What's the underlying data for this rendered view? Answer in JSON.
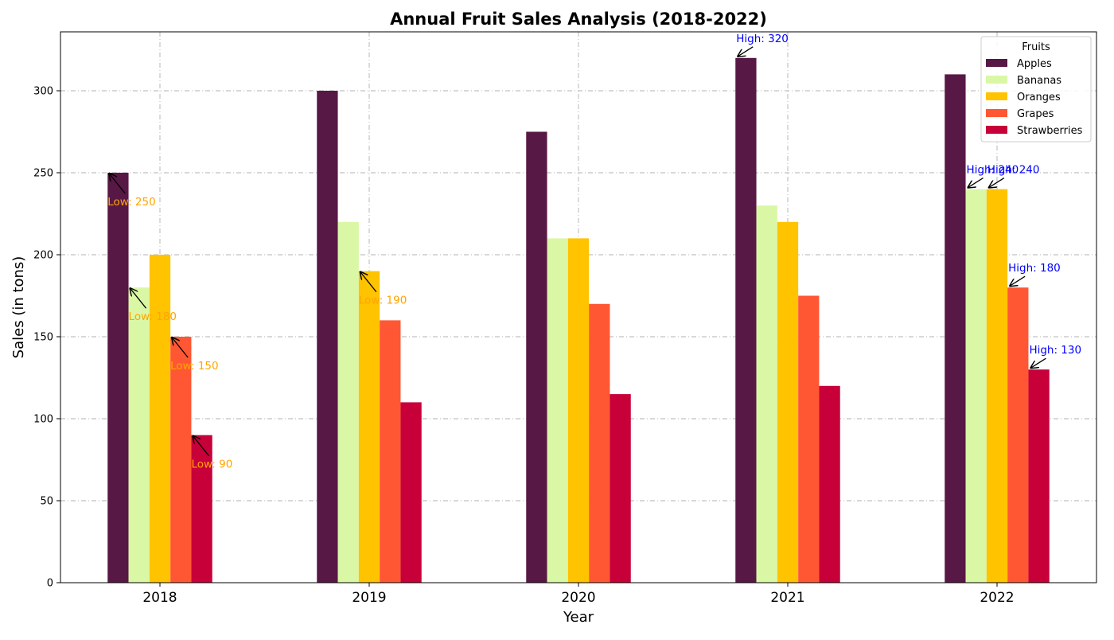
{
  "chart_data": {
    "type": "bar",
    "title": "Annual Fruit Sales Analysis (2018-2022)",
    "xlabel": "Year",
    "ylabel": "Sales (in tons)",
    "categories": [
      "2018",
      "2019",
      "2020",
      "2021",
      "2022"
    ],
    "ylim": [
      0,
      336
    ],
    "yticks": [
      0,
      50,
      100,
      150,
      200,
      250,
      300
    ],
    "grid": true,
    "legend": {
      "title": "Fruits",
      "position": "top-right"
    },
    "series": [
      {
        "name": "Apples",
        "color": "#581845",
        "values": [
          250,
          300,
          275,
          320,
          310
        ]
      },
      {
        "name": "Bananas",
        "color": "#DAF7A6",
        "values": [
          180,
          220,
          210,
          230,
          240
        ]
      },
      {
        "name": "Oranges",
        "color": "#FFC300",
        "values": [
          200,
          190,
          210,
          220,
          240
        ]
      },
      {
        "name": "Grapes",
        "color": "#FF5733",
        "values": [
          150,
          160,
          170,
          175,
          180
        ]
      },
      {
        "name": "Strawberries",
        "color": "#C70039",
        "values": [
          90,
          110,
          115,
          120,
          130
        ]
      }
    ],
    "annotations": [
      {
        "text": "Low: 250",
        "series": 0,
        "category": 0,
        "kind": "low",
        "color": "#FFA500"
      },
      {
        "text": "Low: 180",
        "series": 1,
        "category": 0,
        "kind": "low",
        "color": "#FFA500"
      },
      {
        "text": "Low: 150",
        "series": 3,
        "category": 0,
        "kind": "low",
        "color": "#FFA500"
      },
      {
        "text": "Low: 90",
        "series": 4,
        "category": 0,
        "kind": "low",
        "color": "#FFA500"
      },
      {
        "text": "Low: 190",
        "series": 2,
        "category": 1,
        "kind": "low",
        "color": "#FFA500"
      },
      {
        "text": "High: 320",
        "series": 0,
        "category": 3,
        "kind": "high",
        "color": "#0000FF"
      },
      {
        "text": "High: 240",
        "series": 1,
        "category": 4,
        "kind": "high",
        "color": "#0000FF"
      },
      {
        "text": "High: 240",
        "series": 2,
        "category": 4,
        "kind": "high",
        "color": "#0000FF"
      },
      {
        "text": "High: 180",
        "series": 3,
        "category": 4,
        "kind": "high",
        "color": "#0000FF"
      },
      {
        "text": "High: 130",
        "series": 4,
        "category": 4,
        "kind": "high",
        "color": "#0000FF"
      }
    ]
  }
}
